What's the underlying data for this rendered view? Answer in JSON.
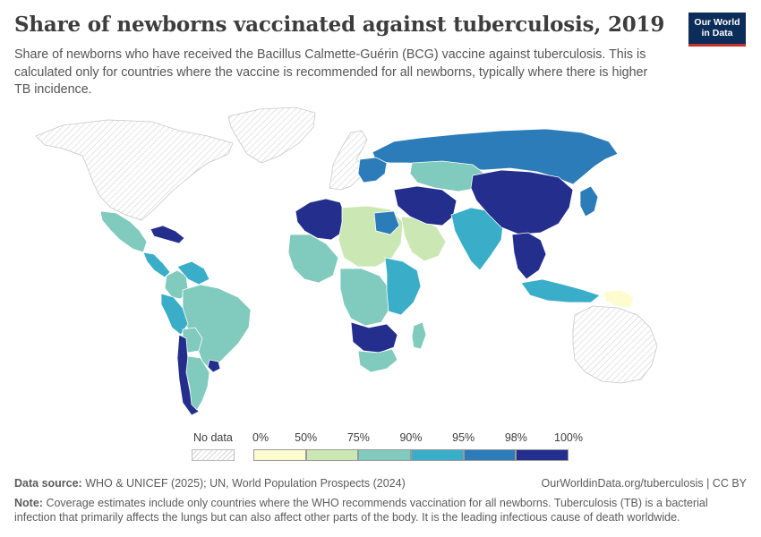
{
  "header": {
    "title": "Share of newborns vaccinated against tuberculosis, 2019",
    "subtitle": "Share of newborns who have received the Bacillus Calmette-Guérin (BCG) vaccine against tuberculosis. This is calculated only for countries where the vaccine is recommended for all newborns, typically where there is higher TB incidence."
  },
  "logo": {
    "line1": "Our World",
    "line2": "in Data",
    "bg_color": "#0c2c5a",
    "accent_color": "#c4342b"
  },
  "legend": {
    "no_data_label": "No data",
    "tick_labels": [
      "0%",
      "50%",
      "75%",
      "90%",
      "95%",
      "98%",
      "100%"
    ],
    "bins": [
      {
        "from": 0,
        "to": 50,
        "color": "#fefccf"
      },
      {
        "from": 50,
        "to": 75,
        "color": "#cbe8b4"
      },
      {
        "from": 75,
        "to": 90,
        "color": "#80cbbd"
      },
      {
        "from": 90,
        "to": 95,
        "color": "#3aaec8"
      },
      {
        "from": 95,
        "to": 98,
        "color": "#2b7cb8"
      },
      {
        "from": 98,
        "to": 100,
        "color": "#232e8d"
      }
    ]
  },
  "regions": [
    {
      "id": "north-america",
      "status": "no-data"
    },
    {
      "id": "greenland",
      "status": "no-data"
    },
    {
      "id": "western-europe",
      "status": "no-data"
    },
    {
      "id": "australia",
      "status": "no-data"
    },
    {
      "id": "russia",
      "bin": 4
    },
    {
      "id": "mexico",
      "bin": 2
    },
    {
      "id": "caribbean",
      "bin": 5
    },
    {
      "id": "central-america",
      "bin": 3
    },
    {
      "id": "colombia",
      "bin": 2
    },
    {
      "id": "venezuela",
      "bin": 3
    },
    {
      "id": "brazil",
      "bin": 2
    },
    {
      "id": "peru",
      "bin": 3
    },
    {
      "id": "bolivia",
      "bin": 2
    },
    {
      "id": "chile",
      "bin": 5
    },
    {
      "id": "argentina",
      "bin": 2
    },
    {
      "id": "uruguay",
      "bin": 5
    },
    {
      "id": "morocco-algeria",
      "bin": 5
    },
    {
      "id": "sahara-belt",
      "bin": 1
    },
    {
      "id": "egypt",
      "bin": 4
    },
    {
      "id": "west-africa",
      "bin": 2
    },
    {
      "id": "central-africa",
      "bin": 2
    },
    {
      "id": "east-africa",
      "bin": 3
    },
    {
      "id": "southern-africa",
      "bin": 5
    },
    {
      "id": "south-africa",
      "bin": 2
    },
    {
      "id": "madagascar",
      "bin": 2
    },
    {
      "id": "arabia",
      "bin": 1
    },
    {
      "id": "iran-region",
      "bin": 5
    },
    {
      "id": "central-asia",
      "bin": 2
    },
    {
      "id": "india",
      "bin": 3
    },
    {
      "id": "china-mongolia",
      "bin": 5
    },
    {
      "id": "southeast-asia",
      "bin": 5
    },
    {
      "id": "indonesia",
      "bin": 3
    },
    {
      "id": "japan",
      "bin": 4
    },
    {
      "id": "papua-new-guinea",
      "bin": 0
    },
    {
      "id": "eastern-europe",
      "bin": 4
    }
  ],
  "footer": {
    "source_label": "Data source:",
    "source_text": "WHO & UNICEF (2025); UN, World Population Prospects (2024)",
    "url": "OurWorldinData.org/tuberculosis | CC BY",
    "note_label": "Note:",
    "note_text": "Coverage estimates include only countries where the WHO recommends vaccination for all newborns. Tuberculosis (TB) is a bacterial infection that primarily affects the lungs but can also affect other parts of the body. It is the leading infectious cause of death worldwide."
  }
}
